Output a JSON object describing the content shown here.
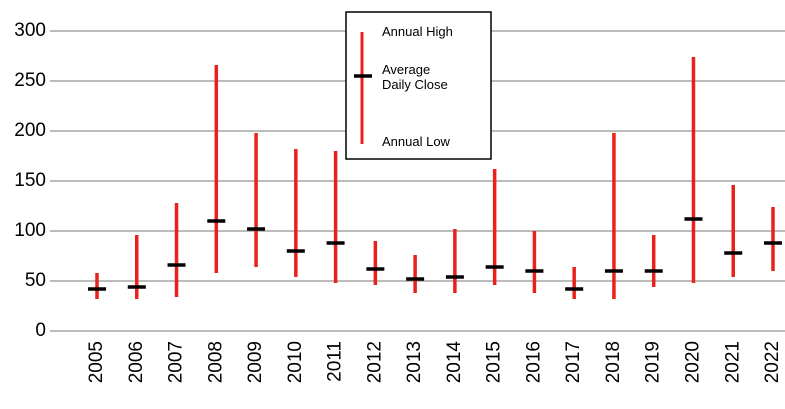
{
  "chart_data": {
    "type": "hilo",
    "categories": [
      "2005",
      "2006",
      "2007",
      "2008",
      "2009",
      "2010",
      "2011",
      "2012",
      "2013",
      "2014",
      "2015",
      "2016",
      "2017",
      "2018",
      "2019",
      "2020",
      "2021",
      "2022"
    ],
    "series": [
      {
        "name": "Annual High",
        "color": "#e8211d",
        "values": [
          58,
          96,
          128,
          266,
          198,
          182,
          180,
          90,
          76,
          102,
          162,
          100,
          64,
          198,
          96,
          274,
          146,
          124
        ]
      },
      {
        "name": "Average Daily Close",
        "color": "#000000",
        "values": [
          42,
          44,
          66,
          110,
          102,
          80,
          88,
          62,
          52,
          54,
          64,
          60,
          42,
          60,
          60,
          112,
          78,
          88
        ]
      },
      {
        "name": "Annual Low",
        "color": "#e8211d",
        "values": [
          32,
          32,
          34,
          58,
          64,
          54,
          48,
          46,
          38,
          38,
          46,
          38,
          32,
          32,
          44,
          48,
          54,
          60
        ]
      }
    ],
    "ylim": [
      0,
      300
    ],
    "yticks": [
      0,
      50,
      100,
      150,
      200,
      250,
      300
    ],
    "grid": true
  }
}
